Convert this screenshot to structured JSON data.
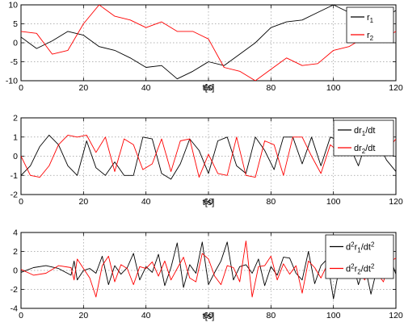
{
  "chart_data": [
    {
      "type": "line",
      "xlabel": "t[s]",
      "ylabel": "",
      "xlim": [
        0,
        120
      ],
      "ylim": [
        -10,
        10
      ],
      "xticks": [
        "0",
        "20",
        "40",
        "60",
        "80",
        "100",
        "120"
      ],
      "yticks": [
        "-10",
        "-5",
        "0",
        "5",
        "10"
      ],
      "grid": true,
      "legend_position": "top-right",
      "series": [
        {
          "name": "r1",
          "legend_main": "r",
          "legend_sub": "1",
          "color": "#000000",
          "x": [
            0,
            5,
            10,
            15,
            20,
            25,
            30,
            35,
            40,
            45,
            50,
            55,
            60,
            65,
            70,
            75,
            80,
            85,
            90,
            95,
            100,
            105,
            110,
            115,
            120
          ],
          "y": [
            1.5,
            -1.5,
            0.5,
            3,
            2,
            -1,
            -2,
            -4,
            -6.5,
            -6,
            -9.5,
            -7.5,
            -5,
            -6,
            -3,
            0,
            4,
            5.5,
            6,
            8,
            10,
            8,
            7,
            6,
            8.5
          ]
        },
        {
          "name": "r2",
          "legend_main": "r",
          "legend_sub": "2",
          "color": "#ff0000",
          "x": [
            0,
            5,
            10,
            15,
            20,
            25,
            30,
            35,
            40,
            45,
            50,
            55,
            60,
            65,
            70,
            75,
            80,
            85,
            90,
            95,
            100,
            105,
            110,
            115,
            120
          ],
          "y": [
            3,
            2.5,
            -3,
            -2,
            5,
            10,
            7,
            6,
            4,
            5.5,
            3,
            3,
            1,
            -6.5,
            -7.5,
            -10,
            -7,
            -4,
            -6,
            -5.5,
            -2,
            -1,
            1.5,
            0.5,
            3
          ]
        }
      ]
    },
    {
      "type": "line",
      "xlabel": "t[s]",
      "ylabel": "",
      "xlim": [
        0,
        120
      ],
      "ylim": [
        -2,
        2
      ],
      "xticks": [
        "0",
        "20",
        "40",
        "60",
        "80",
        "100",
        "120"
      ],
      "yticks": [
        "-2",
        "-1",
        "0",
        "1",
        "2"
      ],
      "grid": true,
      "legend_position": "top-right",
      "series": [
        {
          "name": "dr1/dt",
          "legend_main": "dr",
          "legend_sub": "1",
          "legend_suffix": "/dt",
          "color": "#000000",
          "x": [
            0,
            3,
            6,
            9,
            12,
            15,
            18,
            21,
            24,
            27,
            30,
            33,
            36,
            39,
            42,
            45,
            48,
            51,
            54,
            57,
            60,
            63,
            66,
            69,
            72,
            75,
            78,
            81,
            84,
            87,
            90,
            93,
            96,
            99,
            102,
            105,
            108,
            111,
            114,
            117,
            120
          ],
          "y": [
            -1,
            -0.5,
            0.5,
            1.1,
            0.6,
            -0.5,
            -1,
            0.8,
            -0.6,
            -1,
            -0.3,
            -1,
            -1,
            1.0,
            0.9,
            -0.9,
            -1.2,
            -0.4,
            0.9,
            0.3,
            -0.9,
            0.8,
            1.0,
            -0.5,
            -0.9,
            1.0,
            0.3,
            -0.7,
            1.0,
            1.0,
            -0.4,
            1.0,
            -0.5,
            1.0,
            0.8,
            0.6,
            -0.5,
            1.0,
            0.8,
            -0.2,
            -0.8
          ]
        },
        {
          "name": "dr2/dt",
          "legend_main": "dr",
          "legend_sub": "2",
          "legend_suffix": "/dt",
          "color": "#ff0000",
          "x": [
            0,
            3,
            6,
            9,
            12,
            15,
            18,
            21,
            24,
            27,
            30,
            33,
            36,
            39,
            42,
            45,
            48,
            51,
            54,
            57,
            60,
            63,
            66,
            69,
            72,
            75,
            78,
            81,
            84,
            87,
            90,
            93,
            96,
            99,
            102,
            105,
            108,
            111,
            114,
            117,
            120
          ],
          "y": [
            0,
            -1,
            -1.1,
            -0.5,
            0.6,
            1.1,
            1.0,
            1.1,
            0.2,
            1.0,
            -0.8,
            0.9,
            0.6,
            -0.7,
            -0.4,
            0.9,
            -0.8,
            0.8,
            0.9,
            -1.1,
            0.1,
            -0.9,
            -1.0,
            1.0,
            -1.0,
            -1.1,
            0.8,
            0.6,
            -1.0,
            1.0,
            1.0,
            0.0,
            -0.9,
            0.6,
            0.2,
            0.9,
            0.3,
            0.7,
            0.8,
            0.3,
            0.9
          ]
        }
      ]
    },
    {
      "type": "line",
      "xlabel": "t[s]",
      "ylabel": "",
      "xlim": [
        0,
        120
      ],
      "ylim": [
        -4,
        4
      ],
      "xticks": [
        "0",
        "20",
        "40",
        "60",
        "80",
        "100",
        "120"
      ],
      "yticks": [
        "-4",
        "-2",
        "0",
        "2",
        "4"
      ],
      "grid": true,
      "legend_position": "top-right",
      "series": [
        {
          "name": "d2r1/dt2",
          "legend_main": "d",
          "legend_sup1": "2",
          "legend_mid": "r",
          "legend_sub": "1",
          "legend_suffix": "/dt",
          "legend_sup2": "2",
          "color": "#000000",
          "x": [
            0,
            4,
            8,
            12,
            16,
            17,
            18,
            20,
            22,
            24,
            26,
            28,
            30,
            32,
            34,
            36,
            38,
            40,
            42,
            44,
            46,
            48,
            50,
            52,
            54,
            56,
            58,
            60,
            62,
            64,
            66,
            68,
            70,
            72,
            74,
            76,
            78,
            80,
            82,
            84,
            86,
            88,
            90,
            92,
            94,
            96,
            98,
            100,
            102,
            104,
            106,
            108,
            110,
            112,
            114,
            116,
            118,
            120
          ],
          "y": [
            -0.2,
            0.3,
            0.5,
            0.2,
            -0.5,
            1.0,
            -1.0,
            0,
            0.2,
            -0.3,
            1.5,
            -1.5,
            0.5,
            -0.4,
            0.3,
            1.8,
            -1.0,
            0.4,
            -0.2,
            1.7,
            -1.6,
            0.3,
            2.9,
            -1.8,
            0.6,
            -0.3,
            3.0,
            -1.5,
            -0.2,
            1.0,
            3.0,
            -1.0,
            0.4,
            0.6,
            -0.3,
            1.2,
            -1.6,
            0.4,
            -0.5,
            1.4,
            1.3,
            -0.3,
            -1.0,
            2.0,
            -1.4,
            0.5,
            1.2,
            -3.0,
            0.5,
            -0.5,
            1.0,
            -1.5,
            0.6,
            -2.5,
            0.3,
            -0.6,
            1.5,
            -0.4
          ]
        },
        {
          "name": "d2r2/dt2",
          "legend_main": "d",
          "legend_sup1": "2",
          "legend_mid": "r",
          "legend_sub": "2",
          "legend_suffix": "/dt",
          "legend_sup2": "2",
          "color": "#ff0000",
          "x": [
            0,
            4,
            8,
            12,
            16,
            17,
            18,
            20,
            22,
            24,
            26,
            28,
            30,
            32,
            34,
            36,
            38,
            40,
            42,
            44,
            46,
            48,
            50,
            52,
            54,
            56,
            58,
            60,
            62,
            64,
            66,
            68,
            70,
            72,
            74,
            76,
            78,
            80,
            82,
            84,
            86,
            88,
            90,
            92,
            94,
            96,
            98,
            100,
            102,
            104,
            106,
            108,
            110,
            112,
            114,
            116,
            118,
            120
          ],
          "y": [
            0.1,
            -0.5,
            -0.3,
            0.5,
            0.3,
            -1.0,
            1.2,
            0.2,
            -0.8,
            -2.8,
            0.5,
            1.5,
            -1.2,
            0.6,
            0.2,
            -1.5,
            0.4,
            0.2,
            0.9,
            -0.6,
            1.0,
            -1.0,
            0.2,
            1.4,
            -0.8,
            -1.2,
            1.8,
            1.2,
            -0.6,
            -1.5,
            0.5,
            0.3,
            -1.2,
            3.1,
            -2.8,
            0.4,
            0.5,
            1.5,
            -1.0,
            0.7,
            -0.4,
            0.5,
            -2.4,
            1.0,
            0.3,
            -0.8,
            0.6,
            -0.2,
            1.0,
            -0.6,
            0.5,
            0.3,
            -1.0,
            0.4,
            -0.3,
            -1.2,
            0.9,
            1.3
          ]
        }
      ]
    }
  ]
}
